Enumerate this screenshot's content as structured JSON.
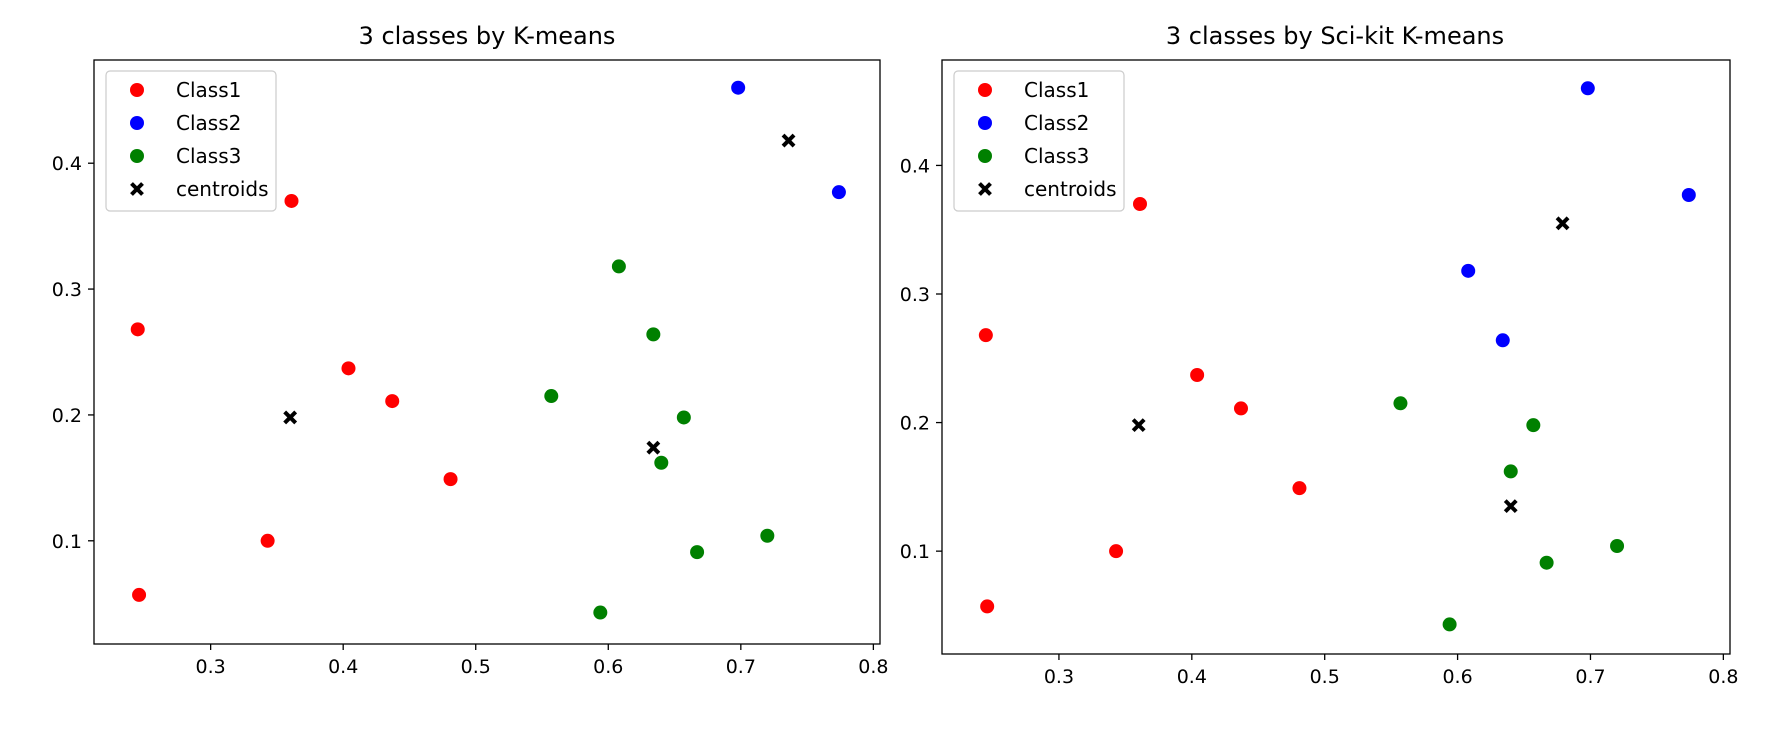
{
  "chart_data": [
    {
      "type": "scatter",
      "title": "3 classes by K-means",
      "xlabel": "",
      "ylabel": "",
      "xlim": [
        0.212,
        0.805
      ],
      "ylim": [
        0.018,
        0.482
      ],
      "xticks": [
        0.3,
        0.4,
        0.5,
        0.6,
        0.7,
        0.8
      ],
      "xtick_labels": [
        "0.3",
        "0.4",
        "0.5",
        "0.6",
        "0.7",
        "0.8"
      ],
      "yticks": [
        0.1,
        0.2,
        0.3,
        0.4
      ],
      "ytick_labels": [
        "0.1",
        "0.2",
        "0.3",
        "0.4"
      ],
      "grid": false,
      "legend_position": "upper-left",
      "series": [
        {
          "name": "Class1",
          "marker": "circle",
          "color": "#ff0000",
          "x": [
            0.361,
            0.245,
            0.404,
            0.437,
            0.481,
            0.343,
            0.246
          ],
          "y": [
            0.37,
            0.268,
            0.237,
            0.211,
            0.149,
            0.1,
            0.057
          ]
        },
        {
          "name": "Class2",
          "marker": "circle",
          "color": "#0000ff",
          "x": [
            0.698,
            0.774
          ],
          "y": [
            0.46,
            0.377
          ]
        },
        {
          "name": "Class3",
          "marker": "circle",
          "color": "#008000",
          "x": [
            0.608,
            0.634,
            0.557,
            0.657,
            0.64,
            0.72,
            0.667,
            0.594
          ],
          "y": [
            0.318,
            0.264,
            0.215,
            0.198,
            0.162,
            0.104,
            0.091,
            0.043
          ]
        },
        {
          "name": "centroids",
          "marker": "x",
          "color": "#000000",
          "x": [
            0.736,
            0.36,
            0.634
          ],
          "y": [
            0.418,
            0.198,
            0.174
          ]
        }
      ]
    },
    {
      "type": "scatter",
      "title": "3 classes by Sci-kit K-means",
      "xlabel": "",
      "ylabel": "",
      "xlim": [
        0.212,
        0.805
      ],
      "ylim": [
        0.02,
        0.482
      ],
      "xticks": [
        0.3,
        0.4,
        0.5,
        0.6,
        0.7,
        0.8
      ],
      "xtick_labels": [
        "0.3",
        "0.4",
        "0.5",
        "0.6",
        "0.7",
        "0.8"
      ],
      "yticks": [
        0.1,
        0.2,
        0.3,
        0.4
      ],
      "ytick_labels": [
        "0.1",
        "0.2",
        "0.3",
        "0.4"
      ],
      "grid": false,
      "legend_position": "upper-left",
      "series": [
        {
          "name": "Class1",
          "marker": "circle",
          "color": "#ff0000",
          "x": [
            0.361,
            0.245,
            0.404,
            0.437,
            0.481,
            0.343,
            0.246
          ],
          "y": [
            0.37,
            0.268,
            0.237,
            0.211,
            0.149,
            0.1,
            0.057
          ]
        },
        {
          "name": "Class2",
          "marker": "circle",
          "color": "#0000ff",
          "x": [
            0.698,
            0.774,
            0.608,
            0.634
          ],
          "y": [
            0.46,
            0.377,
            0.318,
            0.264
          ]
        },
        {
          "name": "Class3",
          "marker": "circle",
          "color": "#008000",
          "x": [
            0.557,
            0.657,
            0.64,
            0.72,
            0.667,
            0.594
          ],
          "y": [
            0.215,
            0.198,
            0.162,
            0.104,
            0.091,
            0.043
          ]
        },
        {
          "name": "centroids",
          "marker": "x",
          "color": "#000000",
          "x": [
            0.679,
            0.36,
            0.64
          ],
          "y": [
            0.355,
            0.198,
            0.135
          ]
        }
      ]
    }
  ]
}
